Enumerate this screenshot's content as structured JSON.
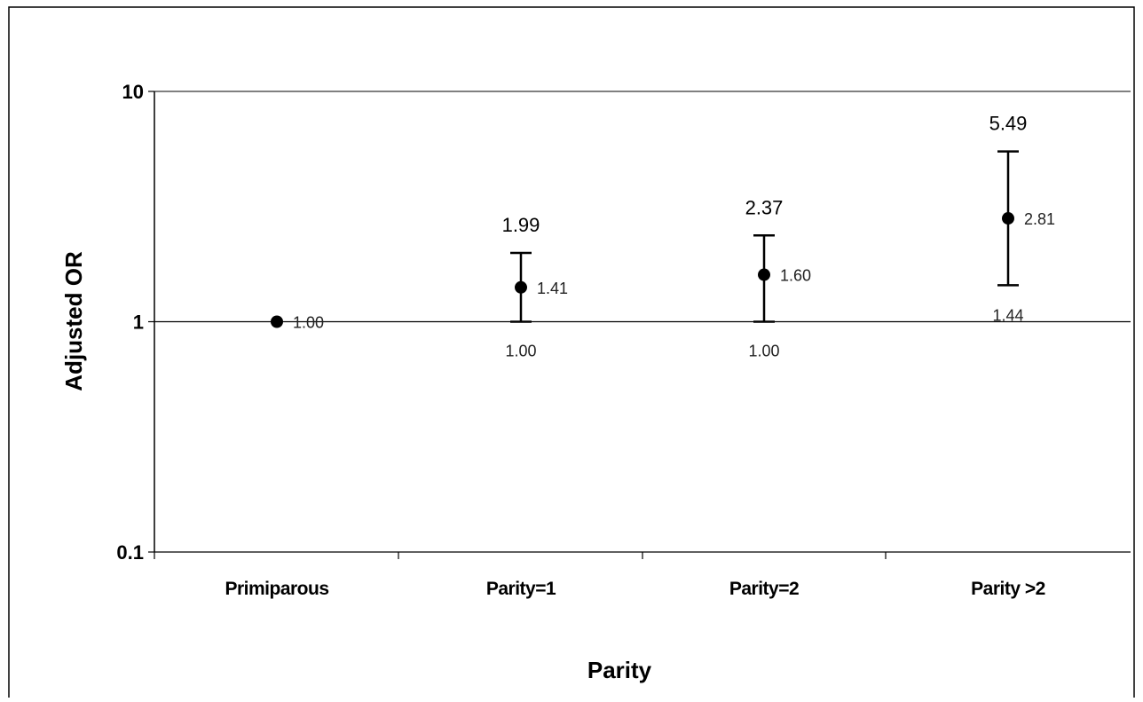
{
  "chart_data": {
    "type": "scatter",
    "title": "",
    "xlabel": "Parity",
    "ylabel": "Adjusted OR",
    "yscale": "log",
    "ylim": [
      0.1,
      10
    ],
    "yticks": [
      "10",
      "1",
      "0.1"
    ],
    "ytick_values": [
      10,
      1,
      0.1
    ],
    "reference_line": 1,
    "grid": false,
    "legend": "none",
    "categories": [
      "Primiparous",
      "Parity=1",
      "Parity=2",
      "Parity >2"
    ],
    "series": [
      {
        "values": [
          1.0,
          1.41,
          1.6,
          2.81
        ],
        "point_labels": [
          "1.00",
          "1.41",
          "1.60",
          "2.81"
        ],
        "upper": [
          null,
          1.99,
          2.37,
          5.49
        ],
        "upper_labels": [
          "",
          "1.99",
          "2.37",
          "5.49"
        ],
        "lower": [
          null,
          1.0,
          1.0,
          1.44
        ],
        "lower_labels": [
          "",
          "1.00",
          "1.00",
          "1.44"
        ]
      }
    ]
  },
  "colors": {
    "marker": "#000000",
    "axis": "#000000",
    "background": "#ffffff"
  }
}
